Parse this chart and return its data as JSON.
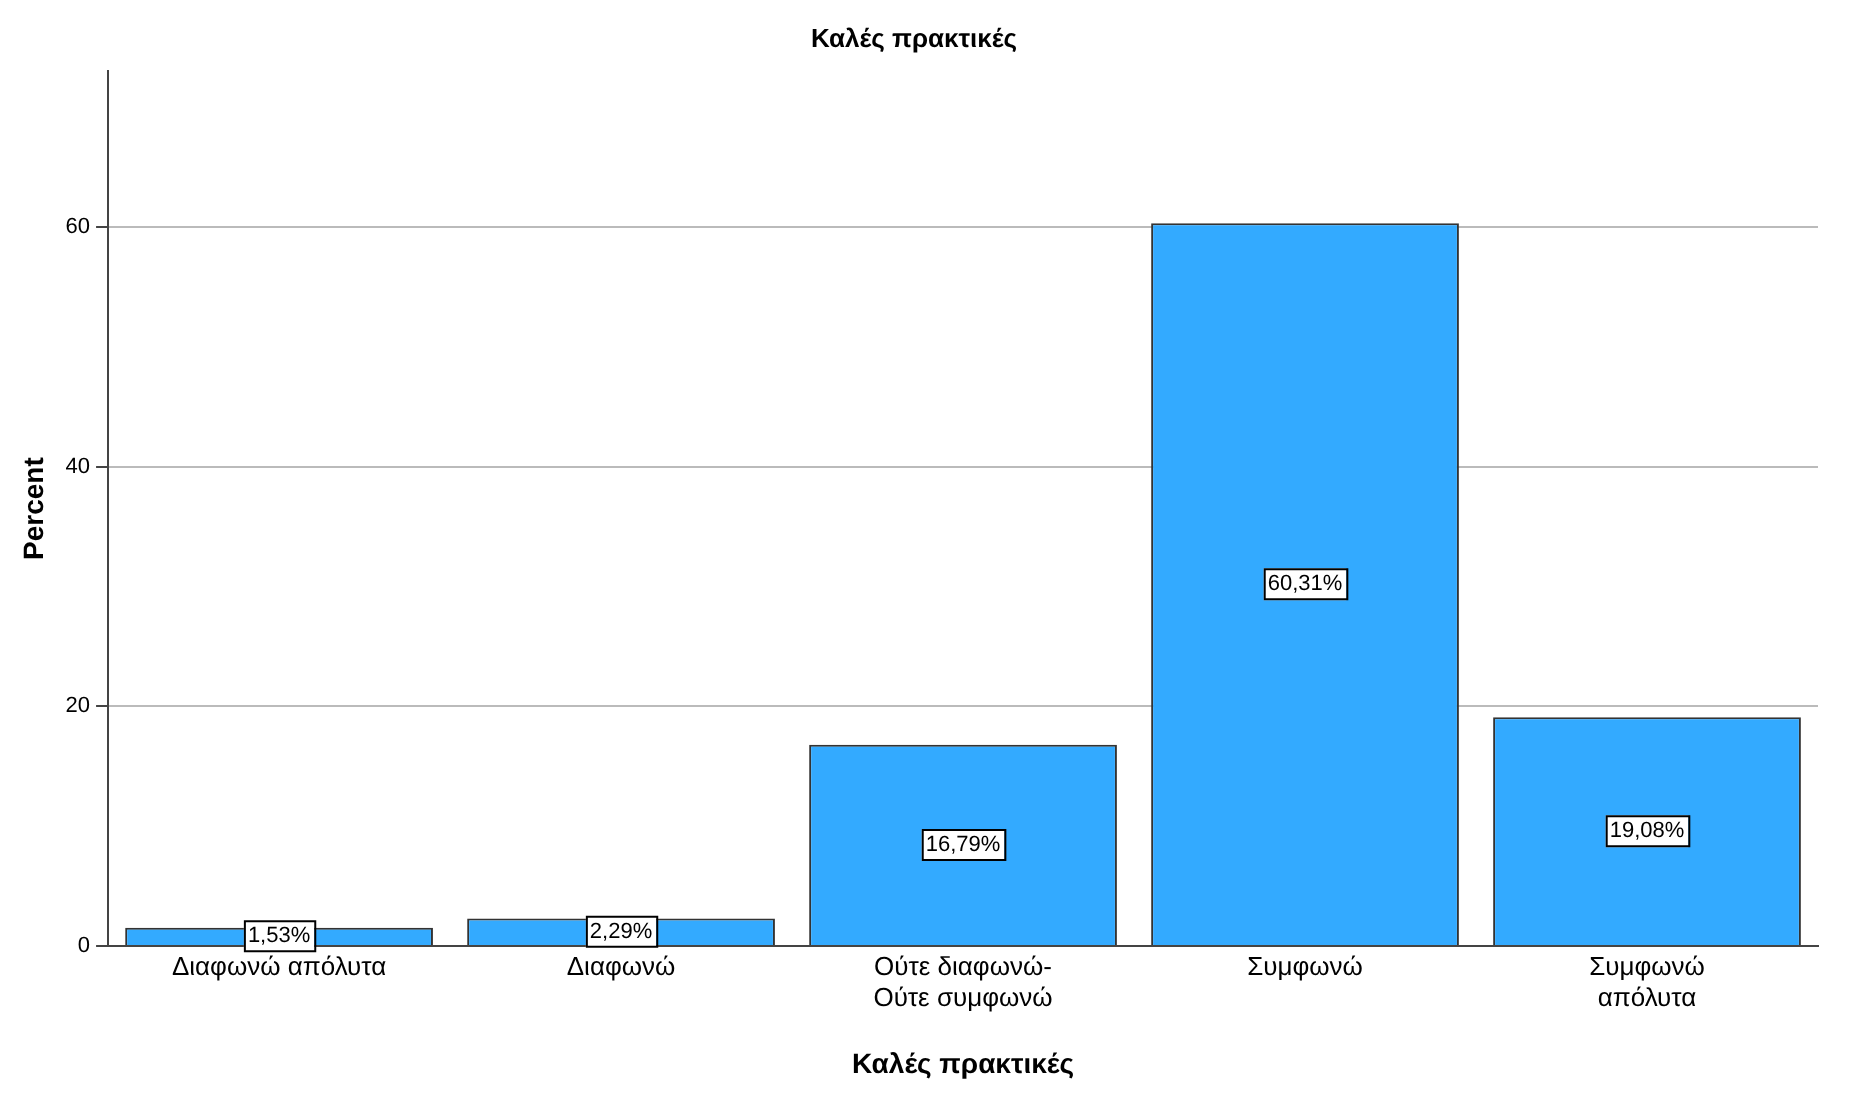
{
  "chart_data": {
    "type": "bar",
    "title": "Καλές πρακτικές",
    "xlabel": "Καλές πρακτικές",
    "ylabel": "Percent",
    "categories": [
      "Διαφωνώ απόλυτα",
      "Διαφωνώ",
      "Ούτε διαφωνώ-\nΟύτε συμφωνώ",
      "Συμφωνώ",
      "Συμφωνώ\nαπόλυτα"
    ],
    "values": [
      1.53,
      2.29,
      16.79,
      60.31,
      19.08
    ],
    "value_labels": [
      "1,53%",
      "2,29%",
      "16,79%",
      "60,31%",
      "19,08%"
    ],
    "color": "#33aaff",
    "ylim": [
      0,
      73
    ],
    "yticks": [
      0,
      20,
      40,
      60
    ],
    "grid": "y",
    "legend": false
  }
}
